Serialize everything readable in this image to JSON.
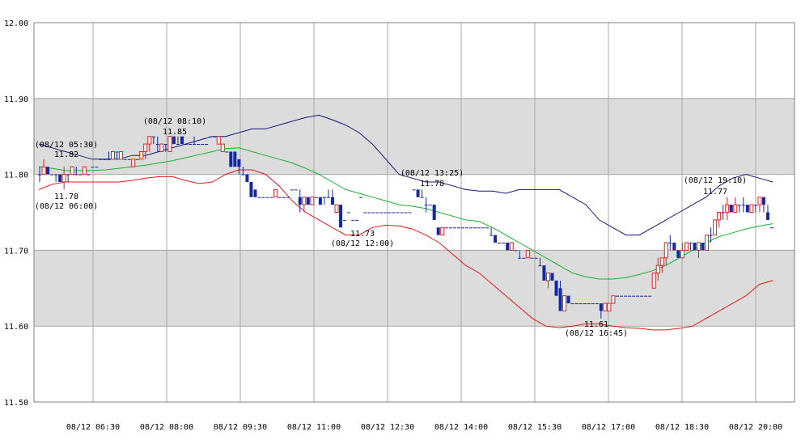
{
  "chart_data": {
    "type": "candlestick",
    "ylim": [
      11.5,
      12.0
    ],
    "y_ticks": [
      "11.50",
      "11.60",
      "11.70",
      "11.80",
      "11.90",
      "12.00"
    ],
    "x_ticks": [
      "08/12 06:30",
      "08/12 08:00",
      "08/12 09:30",
      "08/12 11:00",
      "08/12 12:30",
      "08/12 14:00",
      "08/12 15:30",
      "08/12 17:00",
      "08/12 18:30",
      "08/12 20:00"
    ],
    "shaded_bands": [
      [
        11.8,
        11.9
      ],
      [
        11.6,
        11.7
      ]
    ],
    "colors": {
      "up": "#e02020",
      "down": "#1428a0",
      "upper_band": "#10187a",
      "middle_band": "#18b030",
      "lower_band": "#e01818",
      "shade": "#dcdcdc",
      "grid": "#a8a8a8"
    },
    "candles": [
      [
        11.8,
        11.81,
        11.79,
        11.8
      ],
      [
        11.8,
        11.82,
        11.8,
        11.81
      ],
      [
        11.81,
        11.81,
        11.8,
        11.8
      ],
      [
        11.8,
        11.8,
        11.8,
        11.8
      ],
      [
        11.8,
        11.8,
        11.79,
        11.8
      ],
      [
        11.8,
        11.8,
        11.79,
        11.79
      ],
      [
        11.79,
        11.81,
        11.78,
        11.8
      ],
      [
        11.8,
        11.8,
        11.79,
        11.8
      ],
      [
        11.8,
        11.81,
        11.8,
        11.81
      ],
      [
        11.8,
        11.81,
        11.8,
        11.8
      ],
      [
        11.8,
        11.8,
        11.8,
        11.8
      ],
      [
        11.8,
        11.81,
        11.8,
        11.81
      ],
      [
        11.8,
        11.8,
        11.8,
        11.8
      ],
      [
        11.81,
        11.81,
        11.81,
        11.81
      ],
      [
        11.81,
        11.81,
        11.81,
        11.81
      ],
      [
        11.82,
        11.82,
        11.82,
        11.82
      ],
      [
        11.82,
        11.82,
        11.82,
        11.82
      ],
      [
        11.82,
        11.83,
        11.82,
        11.82
      ],
      [
        11.82,
        11.83,
        11.82,
        11.83
      ],
      [
        11.83,
        11.83,
        11.82,
        11.83
      ],
      [
        11.82,
        11.83,
        11.82,
        11.83
      ],
      [
        11.82,
        11.82,
        11.82,
        11.82
      ],
      [
        11.82,
        11.82,
        11.82,
        11.82
      ],
      [
        11.81,
        11.82,
        11.81,
        11.82
      ],
      [
        11.82,
        11.82,
        11.82,
        11.82
      ],
      [
        11.82,
        11.83,
        11.82,
        11.83
      ],
      [
        11.83,
        11.84,
        11.82,
        11.84
      ],
      [
        11.84,
        11.85,
        11.83,
        11.85
      ],
      [
        11.85,
        11.85,
        11.84,
        11.85
      ],
      [
        11.84,
        11.85,
        11.83,
        11.84
      ],
      [
        11.83,
        11.84,
        11.83,
        11.84
      ],
      [
        11.84,
        11.84,
        11.83,
        11.84
      ],
      [
        11.83,
        11.85,
        11.83,
        11.85
      ],
      [
        11.85,
        11.85,
        11.84,
        11.84
      ],
      [
        11.84,
        11.85,
        11.84,
        11.84
      ],
      [
        11.85,
        11.85,
        11.84,
        11.84
      ],
      [
        11.84,
        11.84,
        11.84,
        11.84
      ],
      [
        11.84,
        11.84,
        11.84,
        11.84
      ],
      [
        11.84,
        11.85,
        11.84,
        11.84
      ],
      [
        11.84,
        11.84,
        11.84,
        11.84
      ],
      [
        11.84,
        11.84,
        11.84,
        11.84
      ],
      [
        11.84,
        11.84,
        11.84,
        11.84
      ],
      [
        11.85,
        11.85,
        11.85,
        11.85
      ],
      [
        11.85,
        11.85,
        11.85,
        11.85
      ],
      [
        11.84,
        11.85,
        11.84,
        11.85
      ],
      [
        11.83,
        11.84,
        11.83,
        11.84
      ],
      [
        11.83,
        11.83,
        11.83,
        11.83
      ],
      [
        11.83,
        11.83,
        11.81,
        11.81
      ],
      [
        11.83,
        11.83,
        11.81,
        11.81
      ],
      [
        11.82,
        11.82,
        11.8,
        11.81
      ],
      [
        11.8,
        11.81,
        11.8,
        11.8
      ],
      [
        11.8,
        11.8,
        11.79,
        11.79
      ],
      [
        11.79,
        11.79,
        11.77,
        11.77
      ],
      [
        11.78,
        11.78,
        11.77,
        11.77
      ],
      [
        11.77,
        11.77,
        11.77,
        11.77
      ],
      [
        11.77,
        11.77,
        11.77,
        11.77
      ],
      [
        11.77,
        11.77,
        11.77,
        11.77
      ],
      [
        11.77,
        11.77,
        11.77,
        11.77
      ],
      [
        11.77,
        11.78,
        11.77,
        11.78
      ],
      [
        11.77,
        11.77,
        11.77,
        11.77
      ],
      [
        11.77,
        11.77,
        11.77,
        11.77
      ],
      [
        11.77,
        11.77,
        11.77,
        11.77
      ],
      [
        11.78,
        11.78,
        11.78,
        11.78
      ],
      [
        11.78,
        11.78,
        11.78,
        11.78
      ],
      [
        11.77,
        11.78,
        11.75,
        11.76
      ],
      [
        11.76,
        11.77,
        11.75,
        11.77
      ],
      [
        11.77,
        11.77,
        11.76,
        11.76
      ],
      [
        11.76,
        11.77,
        11.76,
        11.77
      ],
      [
        11.77,
        11.77,
        11.77,
        11.77
      ],
      [
        11.77,
        11.77,
        11.76,
        11.76
      ],
      [
        11.77,
        11.77,
        11.76,
        11.77
      ],
      [
        11.77,
        11.78,
        11.77,
        11.77
      ],
      [
        11.77,
        11.78,
        11.76,
        11.76
      ],
      [
        11.75,
        11.76,
        11.75,
        11.76
      ],
      [
        11.76,
        11.76,
        11.73,
        11.73
      ],
      [
        11.74,
        11.74,
        11.74,
        11.74
      ],
      [
        11.75,
        11.75,
        11.75,
        11.75
      ],
      [
        11.74,
        11.74,
        11.74,
        11.74
      ],
      [
        11.74,
        11.74,
        11.74,
        11.74
      ],
      [
        11.77,
        11.77,
        11.77,
        11.77
      ],
      [
        11.75,
        11.75,
        11.75,
        11.75
      ],
      [
        11.75,
        11.75,
        11.75,
        11.75
      ],
      [
        11.75,
        11.75,
        11.75,
        11.75
      ],
      [
        11.75,
        11.75,
        11.75,
        11.75
      ],
      [
        11.75,
        11.75,
        11.75,
        11.75
      ],
      [
        11.75,
        11.75,
        11.75,
        11.75
      ],
      [
        11.75,
        11.75,
        11.75,
        11.75
      ],
      [
        11.75,
        11.75,
        11.75,
        11.75
      ],
      [
        11.75,
        11.75,
        11.75,
        11.75
      ],
      [
        11.75,
        11.75,
        11.75,
        11.75
      ],
      [
        11.75,
        11.75,
        11.75,
        11.75
      ],
      [
        11.75,
        11.75,
        11.75,
        11.75
      ],
      [
        11.78,
        11.78,
        11.78,
        11.78
      ],
      [
        11.78,
        11.78,
        11.77,
        11.77
      ],
      [
        11.77,
        11.78,
        11.77,
        11.77
      ],
      [
        11.76,
        11.77,
        11.75,
        11.76
      ],
      [
        11.76,
        11.76,
        11.76,
        11.76
      ],
      [
        11.76,
        11.76,
        11.74,
        11.74
      ],
      [
        11.73,
        11.73,
        11.72,
        11.72
      ],
      [
        11.72,
        11.73,
        11.72,
        11.73
      ],
      [
        11.73,
        11.73,
        11.73,
        11.73
      ],
      [
        11.73,
        11.73,
        11.73,
        11.73
      ],
      [
        11.73,
        11.73,
        11.73,
        11.73
      ],
      [
        11.73,
        11.73,
        11.73,
        11.73
      ],
      [
        11.73,
        11.73,
        11.73,
        11.73
      ],
      [
        11.73,
        11.73,
        11.73,
        11.73
      ],
      [
        11.73,
        11.73,
        11.73,
        11.73
      ],
      [
        11.73,
        11.73,
        11.73,
        11.73
      ],
      [
        11.73,
        11.73,
        11.73,
        11.73
      ],
      [
        11.73,
        11.73,
        11.73,
        11.73
      ],
      [
        11.73,
        11.73,
        11.73,
        11.73
      ],
      [
        11.72,
        11.73,
        11.72,
        11.72
      ],
      [
        11.72,
        11.72,
        11.71,
        11.71
      ],
      [
        11.71,
        11.71,
        11.71,
        11.71
      ],
      [
        11.71,
        11.71,
        11.71,
        11.71
      ],
      [
        11.71,
        11.71,
        11.7,
        11.7
      ],
      [
        11.7,
        11.71,
        11.7,
        11.71
      ],
      [
        11.7,
        11.7,
        11.7,
        11.7
      ],
      [
        11.69,
        11.7,
        11.69,
        11.69
      ],
      [
        11.69,
        11.69,
        11.69,
        11.69
      ],
      [
        11.69,
        11.7,
        11.69,
        11.7
      ],
      [
        11.69,
        11.69,
        11.69,
        11.69
      ],
      [
        11.69,
        11.69,
        11.69,
        11.69
      ],
      [
        11.68,
        11.69,
        11.68,
        11.68
      ],
      [
        11.68,
        11.68,
        11.66,
        11.66
      ],
      [
        11.66,
        11.67,
        11.65,
        11.67
      ],
      [
        11.67,
        11.67,
        11.66,
        11.66
      ],
      [
        11.66,
        11.66,
        11.64,
        11.64
      ],
      [
        11.65,
        11.66,
        11.62,
        11.62
      ],
      [
        11.62,
        11.64,
        11.62,
        11.64
      ],
      [
        11.64,
        11.64,
        11.63,
        11.63
      ],
      [
        11.63,
        11.63,
        11.63,
        11.63
      ],
      [
        11.63,
        11.63,
        11.63,
        11.63
      ],
      [
        11.63,
        11.63,
        11.63,
        11.63
      ],
      [
        11.63,
        11.63,
        11.63,
        11.63
      ],
      [
        11.63,
        11.63,
        11.63,
        11.63
      ],
      [
        11.63,
        11.63,
        11.63,
        11.63
      ],
      [
        11.63,
        11.63,
        11.63,
        11.63
      ],
      [
        11.63,
        11.63,
        11.61,
        11.62
      ],
      [
        11.62,
        11.63,
        11.62,
        11.63
      ],
      [
        11.62,
        11.63,
        11.62,
        11.63
      ],
      [
        11.63,
        11.64,
        11.63,
        11.64
      ],
      [
        11.64,
        11.64,
        11.64,
        11.64
      ],
      [
        11.64,
        11.64,
        11.64,
        11.64
      ],
      [
        11.64,
        11.64,
        11.64,
        11.64
      ],
      [
        11.64,
        11.64,
        11.64,
        11.64
      ],
      [
        11.64,
        11.64,
        11.64,
        11.64
      ],
      [
        11.64,
        11.64,
        11.64,
        11.64
      ],
      [
        11.64,
        11.64,
        11.64,
        11.64
      ],
      [
        11.64,
        11.64,
        11.64,
        11.64
      ],
      [
        11.64,
        11.64,
        11.64,
        11.64
      ],
      [
        11.65,
        11.67,
        11.65,
        11.67
      ],
      [
        11.67,
        11.69,
        11.66,
        11.68
      ],
      [
        11.68,
        11.69,
        11.67,
        11.69
      ],
      [
        11.69,
        11.71,
        11.68,
        11.71
      ],
      [
        11.71,
        11.72,
        11.7,
        11.71
      ],
      [
        11.71,
        11.71,
        11.7,
        11.7
      ],
      [
        11.7,
        11.7,
        11.69,
        11.69
      ],
      [
        11.69,
        11.71,
        11.69,
        11.7
      ],
      [
        11.7,
        11.71,
        11.7,
        11.71
      ],
      [
        11.71,
        11.71,
        11.7,
        11.71
      ],
      [
        11.71,
        11.71,
        11.7,
        11.7
      ],
      [
        11.7,
        11.71,
        11.69,
        11.71
      ],
      [
        11.71,
        11.71,
        11.7,
        11.7
      ],
      [
        11.7,
        11.72,
        11.7,
        11.72
      ],
      [
        11.72,
        11.73,
        11.71,
        11.72
      ],
      [
        11.72,
        11.74,
        11.72,
        11.74
      ],
      [
        11.74,
        11.75,
        11.73,
        11.75
      ],
      [
        11.75,
        11.76,
        11.74,
        11.75
      ],
      [
        11.75,
        11.77,
        11.74,
        11.76
      ],
      [
        11.76,
        11.76,
        11.75,
        11.75
      ],
      [
        11.75,
        11.77,
        11.75,
        11.76
      ],
      [
        11.76,
        11.76,
        11.75,
        11.76
      ],
      [
        11.76,
        11.77,
        11.75,
        11.76
      ],
      [
        11.76,
        11.76,
        11.75,
        11.75
      ],
      [
        11.75,
        11.76,
        11.75,
        11.76
      ],
      [
        11.76,
        11.76,
        11.75,
        11.76
      ],
      [
        11.76,
        11.77,
        11.75,
        11.77
      ],
      [
        11.77,
        11.77,
        11.75,
        11.76
      ],
      [
        11.75,
        11.76,
        11.74,
        11.74
      ],
      [
        11.73,
        11.73,
        11.73,
        11.73
      ]
    ],
    "bands": {
      "upper": [
        11.84,
        11.835,
        11.83,
        11.825,
        11.82,
        11.82,
        11.82,
        11.825,
        11.825,
        11.83,
        11.835,
        11.84,
        11.845,
        11.85,
        11.85,
        11.855,
        11.86,
        11.86,
        11.865,
        11.87,
        11.875,
        11.878,
        11.872,
        11.865,
        11.855,
        11.84,
        11.82,
        11.8,
        11.795,
        11.79,
        11.79,
        11.785,
        11.78,
        11.778,
        11.778,
        11.775,
        11.78,
        11.78,
        11.78,
        11.78,
        11.77,
        11.76,
        11.74,
        11.73,
        11.72,
        11.72,
        11.73,
        11.74,
        11.75,
        11.76,
        11.77,
        11.785,
        11.795,
        11.8,
        11.795,
        11.79
      ],
      "middle": [
        11.81,
        11.808,
        11.805,
        11.805,
        11.805,
        11.806,
        11.808,
        11.81,
        11.812,
        11.815,
        11.818,
        11.822,
        11.826,
        11.83,
        11.834,
        11.835,
        11.83,
        11.825,
        11.82,
        11.815,
        11.808,
        11.8,
        11.79,
        11.78,
        11.775,
        11.77,
        11.765,
        11.76,
        11.758,
        11.755,
        11.75,
        11.745,
        11.74,
        11.738,
        11.73,
        11.72,
        11.71,
        11.7,
        11.69,
        11.68,
        11.67,
        11.665,
        11.662,
        11.662,
        11.664,
        11.668,
        11.673,
        11.68,
        11.69,
        11.7,
        11.71,
        11.718,
        11.723,
        11.728,
        11.732,
        11.735
      ],
      "lower": [
        11.78,
        11.787,
        11.79,
        11.79,
        11.79,
        11.79,
        11.79,
        11.792,
        11.795,
        11.797,
        11.797,
        11.792,
        11.788,
        11.79,
        11.8,
        11.806,
        11.806,
        11.8,
        11.785,
        11.765,
        11.75,
        11.74,
        11.73,
        11.72,
        11.72,
        11.73,
        11.733,
        11.732,
        11.728,
        11.72,
        11.71,
        11.695,
        11.68,
        11.67,
        11.655,
        11.64,
        11.625,
        11.61,
        11.6,
        11.598,
        11.6,
        11.603,
        11.603,
        11.6,
        11.598,
        11.597,
        11.595,
        11.595,
        11.597,
        11.6,
        11.61,
        11.62,
        11.63,
        11.64,
        11.655,
        11.66
      ]
    },
    "annotations": [
      {
        "time": "(08/12 05:30)",
        "price": "11.82"
      },
      {
        "time": "(08/12 06:00)",
        "price": "11.78"
      },
      {
        "time": "(08/12 08:10)",
        "price": "11.85"
      },
      {
        "time": "(08/12 12:00)",
        "price": "11.73"
      },
      {
        "time": "(08/12 13:25)",
        "price": "11.78"
      },
      {
        "time": "(08/12 16:45)",
        "price": "11.61"
      },
      {
        "time": "(08/12 19:10)",
        "price": "11.77"
      }
    ]
  }
}
